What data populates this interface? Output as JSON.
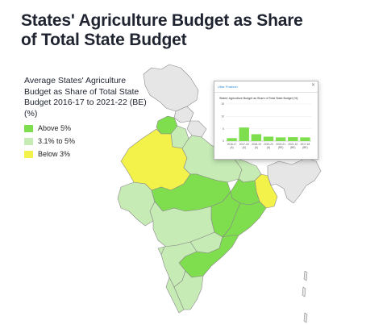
{
  "title": "States' Agriculture Budget as Share of Total State Budget",
  "subtitle": "Average States' Agriculture Budget as Share of Total State Budget 2016-17 to 2021-22 (BE) (%)",
  "legend": {
    "items": [
      {
        "label": "Above 5%",
        "color": "#7ede4e"
      },
      {
        "label": "3.1% to 5%",
        "color": "#c6ebb5"
      },
      {
        "label": "Below 3%",
        "color": "#f3f24a"
      }
    ]
  },
  "colors": {
    "no_data": "#e6e6e6",
    "above": "#7ede4e",
    "mid": "#c6ebb5",
    "below": "#f3f24a",
    "border": "#8a8a8a"
  },
  "popup": {
    "header": "Uttar Pradesh",
    "close_icon": "close-icon",
    "chart_title": "States' Agriculture Budget as Share of Total State Budget (%)",
    "chart_data": {
      "type": "bar",
      "categories": [
        "2016-17 (A)",
        "2017-18 (A)",
        "2018-19 (A)",
        "2019-20 (A)",
        "2020-21 (RE)",
        "2021-22 (BE)",
        "2017-18 (BE)"
      ],
      "values": [
        1.2,
        5.5,
        2.8,
        1.8,
        1.5,
        1.6,
        1.5
      ],
      "ylim": [
        0,
        15
      ],
      "yticks": [
        0,
        5,
        10,
        15
      ],
      "bar_color": "#7ede4e"
    }
  }
}
